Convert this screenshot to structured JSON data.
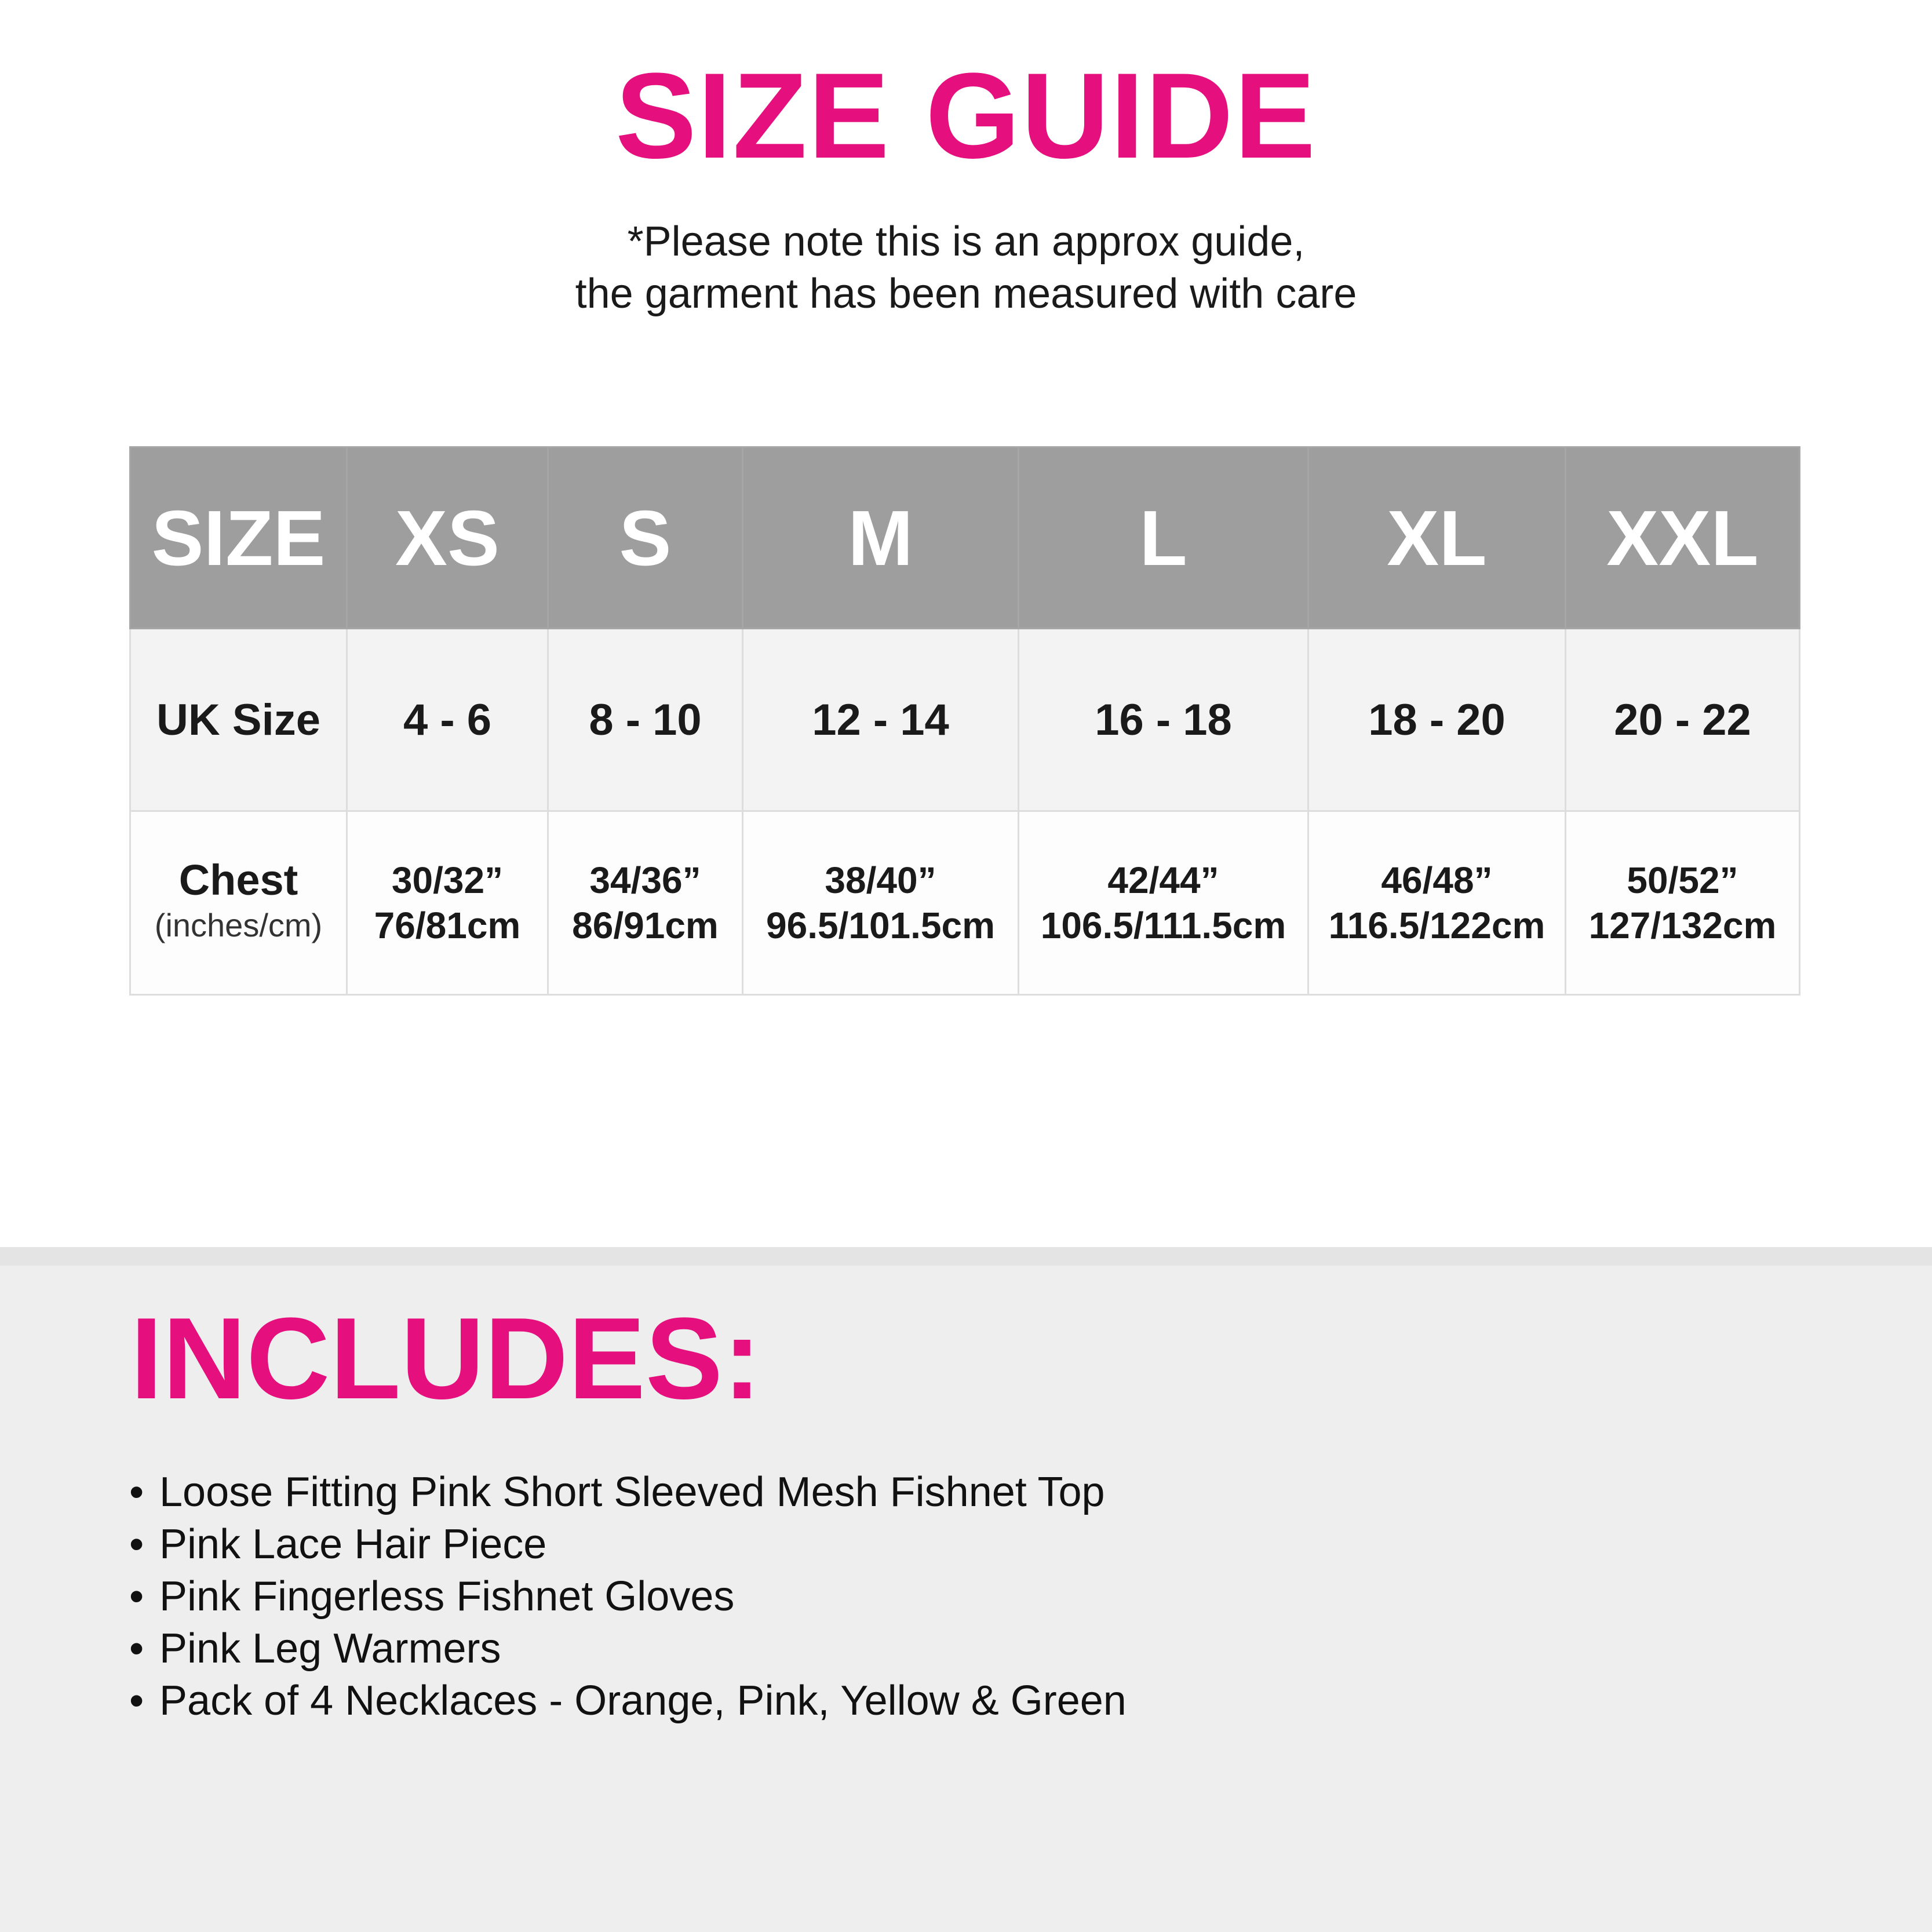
{
  "title": "SIZE GUIDE",
  "note": [
    "*Please note this is an approx guide,",
    "the garment has been measured with care"
  ],
  "table": {
    "header": [
      "SIZE",
      "XS",
      "S",
      "M",
      "L",
      "XL",
      "XXL"
    ],
    "uk_size": {
      "label": "UK Size",
      "values": [
        "4 - 6",
        "8 - 10",
        "12 - 14",
        "16 - 18",
        "18 - 20",
        "20 - 22"
      ]
    },
    "chest": {
      "label": "Chest",
      "sublabel": "(inches/cm)",
      "inches": [
        "30/32”",
        "34/36”",
        "38/40”",
        "42/44”",
        "46/48”",
        "50/52”"
      ],
      "cm": [
        "76/81cm",
        "86/91cm",
        "96.5/101.5cm",
        "106.5/111.5cm",
        "116.5/122cm",
        "127/132cm"
      ]
    }
  },
  "includes": {
    "title": "INCLUDES:",
    "bullet": "•",
    "items": [
      "Loose Fitting Pink Short Sleeved Mesh Fishnet Top",
      "Pink Lace Hair Piece",
      "Pink Fingerless Fishnet Gloves",
      "Pink Leg Warmers",
      "Pack of 4 Necklaces - Orange, Pink, Yellow & Green"
    ]
  },
  "colors": {
    "accent": "#e5107e",
    "header_bg": "#9e9e9e",
    "section_bg": "#eeeeee"
  }
}
